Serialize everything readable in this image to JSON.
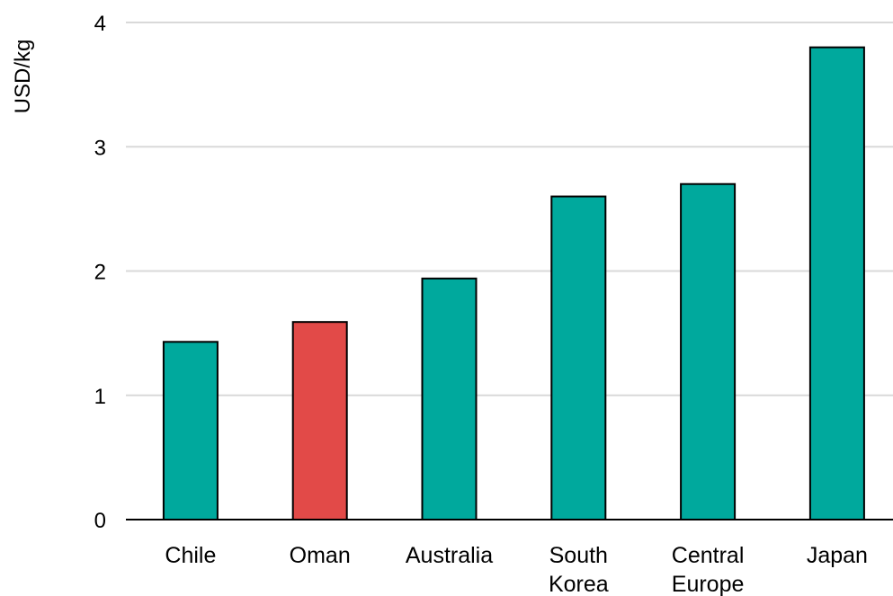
{
  "chart_data": {
    "type": "bar",
    "title": "",
    "xlabel": "",
    "ylabel": "USD/kg",
    "categories": [
      "Chile",
      "Oman",
      "Australia",
      "South Korea",
      "Central Europe",
      "Japan"
    ],
    "category_lines": [
      [
        "Chile"
      ],
      [
        "Oman"
      ],
      [
        "Australia"
      ],
      [
        "South",
        "Korea"
      ],
      [
        "Central",
        "Europe"
      ],
      [
        "Japan"
      ]
    ],
    "values": [
      1.43,
      1.59,
      1.94,
      2.6,
      2.7,
      3.8
    ],
    "colors": [
      "#00a99d",
      "#e24a48",
      "#00a99d",
      "#00a99d",
      "#00a99d",
      "#00a99d"
    ],
    "ylim": [
      0,
      4
    ],
    "yticks": [
      0,
      1,
      2,
      3,
      4
    ],
    "grid": true,
    "legend": "none"
  }
}
